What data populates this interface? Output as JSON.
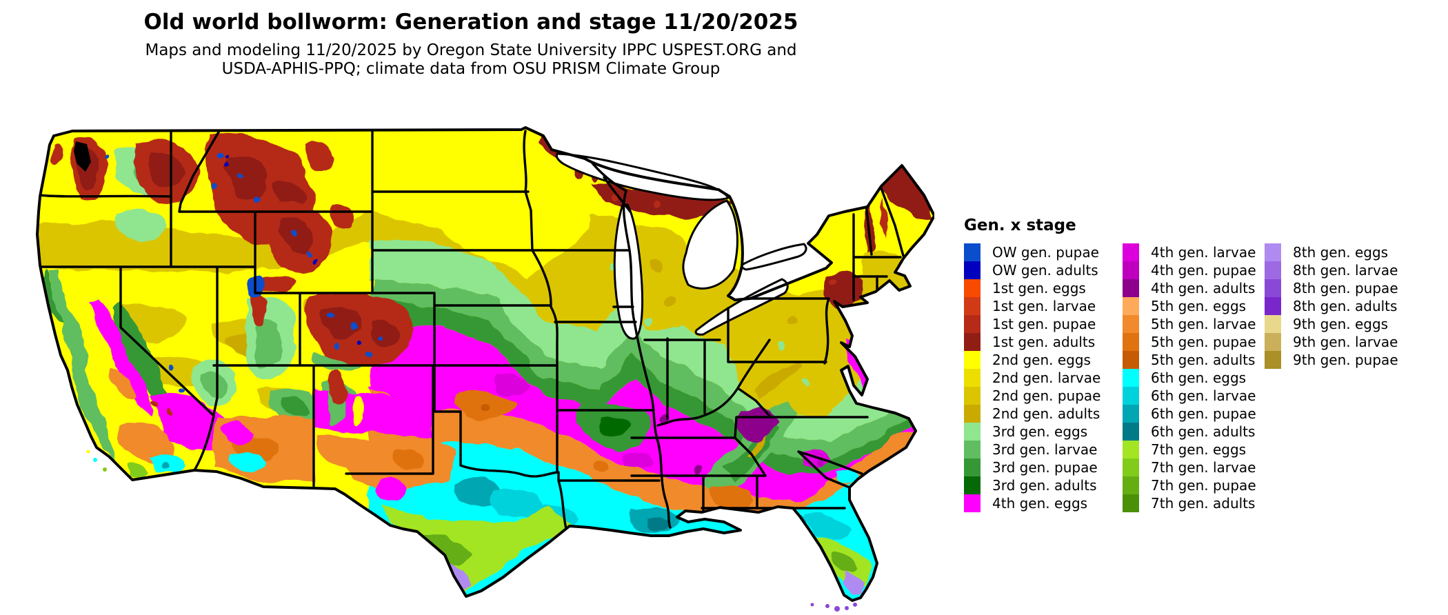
{
  "title": "Old world bollworm: Generation and stage 11/20/2025",
  "subtitle1": "Maps and modeling 11/20/2025 by Oregon State University IPPC USPEST.ORG and",
  "subtitle2": "USDA-APHIS-PPQ; climate data from OSU PRISM Climate Group",
  "legend": {
    "title": "Gen. x stage",
    "columns": [
      [
        {
          "label": "OW gen. pupae",
          "color_key": "owp"
        },
        {
          "label": "OW gen. adults",
          "color_key": "owa"
        },
        {
          "label": "1st gen. eggs",
          "color_key": "g1e"
        },
        {
          "label": "1st gen. larvae",
          "color_key": "g1l"
        },
        {
          "label": "1st gen. pupae",
          "color_key": "g1p"
        },
        {
          "label": "1st gen. adults",
          "color_key": "g1a"
        },
        {
          "label": "2nd gen. eggs",
          "color_key": "g2e"
        },
        {
          "label": "2nd gen. larvae",
          "color_key": "g2l"
        },
        {
          "label": "2nd gen. pupae",
          "color_key": "g2p"
        },
        {
          "label": "2nd gen. adults",
          "color_key": "g2a"
        },
        {
          "label": "3rd gen. eggs",
          "color_key": "g3e"
        },
        {
          "label": "3rd gen. larvae",
          "color_key": "g3l"
        },
        {
          "label": "3rd gen. pupae",
          "color_key": "g3p"
        },
        {
          "label": "3rd gen. adults",
          "color_key": "g3a"
        },
        {
          "label": "4th gen. eggs",
          "color_key": "g4e"
        }
      ],
      [
        {
          "label": "4th gen. larvae",
          "color_key": "g4l"
        },
        {
          "label": "4th gen. pupae",
          "color_key": "g4p"
        },
        {
          "label": "4th gen. adults",
          "color_key": "g4a"
        },
        {
          "label": "5th gen. eggs",
          "color_key": "g5e"
        },
        {
          "label": "5th gen. larvae",
          "color_key": "g5l"
        },
        {
          "label": "5th gen. pupae",
          "color_key": "g5p"
        },
        {
          "label": "5th gen. adults",
          "color_key": "g5a"
        },
        {
          "label": "6th gen. eggs",
          "color_key": "g6e"
        },
        {
          "label": "6th gen. larvae",
          "color_key": "g6l"
        },
        {
          "label": "6th gen. pupae",
          "color_key": "g6p"
        },
        {
          "label": "6th gen. adults",
          "color_key": "g6a"
        },
        {
          "label": "7th gen. eggs",
          "color_key": "g7e"
        },
        {
          "label": "7th gen. larvae",
          "color_key": "g7l"
        },
        {
          "label": "7th gen. pupae",
          "color_key": "g7p"
        },
        {
          "label": "7th gen. adults",
          "color_key": "g7a"
        }
      ],
      [
        {
          "label": "8th gen. eggs",
          "color_key": "g8e"
        },
        {
          "label": "8th gen. larvae",
          "color_key": "g8l"
        },
        {
          "label": "8th gen. pupae",
          "color_key": "g8p"
        },
        {
          "label": "8th gen. adults",
          "color_key": "g8a"
        },
        {
          "label": "9th gen. eggs",
          "color_key": "g9e"
        },
        {
          "label": "9th gen. larvae",
          "color_key": "g9l"
        },
        {
          "label": "9th gen. pupae",
          "color_key": "g9p"
        }
      ]
    ]
  },
  "colors": {
    "owp": "#0B4ECB",
    "owa": "#0000BE",
    "g1e": "#F84A00",
    "g1l": "#D13A16",
    "g1p": "#B52B18",
    "g1a": "#911E15",
    "g2e": "#FFFF00",
    "g2l": "#ECDF00",
    "g2p": "#DBC500",
    "g2a": "#CBAA00",
    "g3e": "#8FE68F",
    "g3l": "#61BD61",
    "g3p": "#359835",
    "g3a": "#056A05",
    "g4e": "#FF00FF",
    "g4l": "#DC00DC",
    "g4p": "#BE00BE",
    "g4a": "#8C008C",
    "g5e": "#FFA95B",
    "g5l": "#F08A2C",
    "g5p": "#E0720F",
    "g5a": "#C55C04",
    "g6e": "#00FFFF",
    "g6l": "#00D2DB",
    "g6p": "#00A6B2",
    "g6a": "#007A87",
    "g7e": "#A3E522",
    "g7l": "#81CB1B",
    "g7p": "#65AE12",
    "g7a": "#4A9108",
    "g8e": "#AF8BF1",
    "g8l": "#9D6AE4",
    "g8p": "#8A48D7",
    "g8a": "#7926CB",
    "g9e": "#E8D88C",
    "g9l": "#CAB05A",
    "g9p": "#AB8F27",
    "border": "#000000"
  }
}
